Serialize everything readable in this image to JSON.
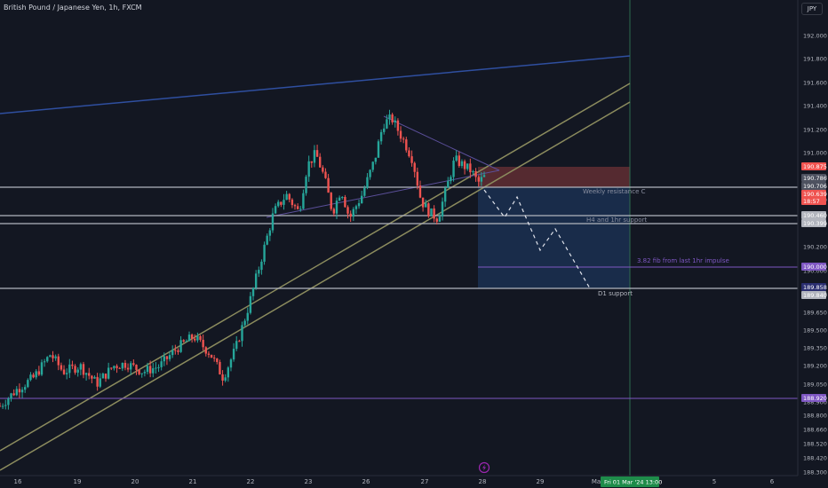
{
  "header": {
    "title": "British Pound / Japanese Yen, 1h, FXCM",
    "currency": "JPY"
  },
  "colors": {
    "background": "#131722",
    "up": "#26a69a",
    "down": "#ef5350",
    "text": "#b2b5be",
    "resistance_line": "#b2b5be",
    "channel_line": "#8c8c5e",
    "upper_trend_line": "#2f4fa0",
    "purple_line": "#7e57c2",
    "target_zone": "#1e3a66",
    "stop_zone": "#8c3a3c",
    "crosshair": "#2e6b4f",
    "date_badge": "#1e8c4a"
  },
  "chart_data": {
    "type": "candlestick",
    "symbol": "GBPJPY",
    "interval": "1h",
    "exchange": "FXCM",
    "x_axis_labels": [
      "16",
      "19",
      "20",
      "21",
      "22",
      "23",
      "26",
      "27",
      "28",
      "29",
      "Ma",
      "5",
      "6"
    ],
    "y_ticks": [
      192.0,
      191.8,
      191.6,
      191.4,
      191.2,
      191.0,
      190.8,
      190.6,
      190.4,
      190.2,
      190.0,
      189.8,
      189.65,
      189.5,
      189.35,
      189.2,
      189.05,
      188.9,
      188.8,
      188.66,
      188.52,
      188.42,
      188.3
    ],
    "y_tick_labels": [
      "192.000",
      "191.800",
      "191.600",
      "191.400",
      "191.200",
      "191.000",
      "190.800",
      "190.600",
      "190.400",
      "190.200",
      "190.000",
      "189.800",
      "189.650",
      "189.500",
      "189.350",
      "189.200",
      "189.050",
      "188.900",
      "188.800",
      "188.660",
      "188.520",
      "188.420",
      "188.300"
    ],
    "ylim": [
      188.3,
      192.1
    ],
    "price_path": [
      [
        16.0,
        188.86
      ],
      [
        16.4,
        189.0
      ],
      [
        16.8,
        189.1
      ],
      [
        17.2,
        189.3
      ],
      [
        17.5,
        189.15
      ],
      [
        17.9,
        189.2
      ],
      [
        18.3,
        189.05
      ],
      [
        18.7,
        189.2
      ],
      [
        19.0,
        189.22
      ],
      [
        19.4,
        189.15
      ],
      [
        19.8,
        189.2
      ],
      [
        20.2,
        189.35
      ],
      [
        20.6,
        189.45
      ],
      [
        21.0,
        189.3
      ],
      [
        21.3,
        189.1
      ],
      [
        21.6,
        189.35
      ],
      [
        21.9,
        189.7
      ],
      [
        22.2,
        190.1
      ],
      [
        22.5,
        190.5
      ],
      [
        22.8,
        190.65
      ],
      [
        23.1,
        190.5
      ],
      [
        23.3,
        190.9
      ],
      [
        23.5,
        191.0
      ],
      [
        23.7,
        190.8
      ],
      [
        23.9,
        190.5
      ],
      [
        24.1,
        190.7
      ],
      [
        24.3,
        190.45
      ],
      [
        24.6,
        190.65
      ],
      [
        24.9,
        190.95
      ],
      [
        25.1,
        191.25
      ],
      [
        25.3,
        191.3
      ],
      [
        25.6,
        191.1
      ],
      [
        25.8,
        190.95
      ],
      [
        26.0,
        190.6
      ],
      [
        26.2,
        190.5
      ],
      [
        26.4,
        190.45
      ],
      [
        26.6,
        190.7
      ],
      [
        26.8,
        190.95
      ],
      [
        27.0,
        190.9
      ],
      [
        27.2,
        190.85
      ],
      [
        27.35,
        190.75
      ],
      [
        27.5,
        190.8
      ]
    ],
    "support_resistance": [
      {
        "label": "Weekly resistance C",
        "price": 190.72
      },
      {
        "label": "H4 and 1hr support",
        "price": 190.46
      },
      {
        "label": "",
        "price": 190.4
      },
      {
        "label": "D1 support",
        "price": 189.858
      }
    ],
    "fib_line": {
      "label": "3.82 fib from last 1hr impulse",
      "price": 190.0
    },
    "lower_level": {
      "price": 188.92
    },
    "position": {
      "entry": 190.72,
      "stop": 190.875,
      "target": 189.858
    },
    "projected_path": [
      [
        27.4,
        190.72
      ],
      [
        27.6,
        190.55
      ],
      [
        27.8,
        190.7
      ],
      [
        28.2,
        190.2
      ],
      [
        28.5,
        190.35
      ],
      [
        29.2,
        189.858
      ]
    ],
    "price_labels": [
      {
        "text": "190.875",
        "color": "#ef5350",
        "price": 190.875
      },
      {
        "text": "190.786",
        "color": "#4e5260",
        "price": 190.786
      },
      {
        "text": "190.706",
        "color": "#4e5260",
        "price": 190.706
      },
      {
        "text": "190.639",
        "color": "#ef5350",
        "price": 190.639
      },
      {
        "text": "18:57",
        "color": "#ef5350",
        "price": 190.6
      },
      {
        "text": "190.460",
        "color": "#b2b5be",
        "price": 190.46
      },
      {
        "text": "190.399",
        "color": "#b2b5be",
        "price": 190.399
      },
      {
        "text": "190.000",
        "color": "#7e57c2",
        "price": 190.0
      },
      {
        "text": "189.858",
        "color": "#2a2e70",
        "price": 189.858
      },
      {
        "text": "189.840",
        "color": "#b2b5be",
        "price": 189.84
      },
      {
        "text": "188.920",
        "color": "#7e57c2",
        "price": 188.92
      }
    ],
    "crosshair_date": "Fri 01 Mar '24   13:00"
  }
}
